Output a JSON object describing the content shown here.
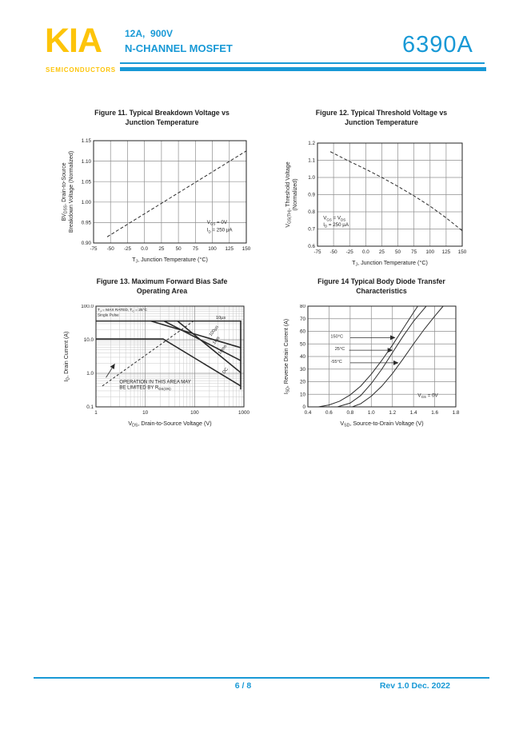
{
  "header": {
    "logo": "KIA",
    "logo_subtitle": "SEMICONDUCTORS",
    "rating_line": "12A,  900V",
    "device_type": "N-CHANNEL MOSFET",
    "part_number": "6390A"
  },
  "footer": {
    "page_indicator": "6 / 8",
    "revision": "Rev 1.0 Dec. 2022"
  },
  "colors": {
    "accent": "#1899D6",
    "logo_yellow": "#FDC40A",
    "ink": "#222222",
    "grid": "#8f8f8f",
    "minor_grid": "#c9c9c9",
    "curve": "#2b2b2b"
  },
  "chart_data": [
    {
      "type": "line",
      "title1": "Figure 11.   Typical Breakdown Voltage vs",
      "title2": "Junction Temperature",
      "ylabel_lines": [
        "BV~DSS~, Drain-to-Source",
        "Breakdown Voltage (Normalized)"
      ],
      "xlabel": "T~J~, Junction Temperature (°C)",
      "x": {
        "scale": "linear",
        "min": -75,
        "max": 150,
        "ticks": [
          -75,
          -50,
          -25,
          0,
          25,
          50,
          75,
          100,
          125,
          150
        ],
        "labels": [
          "-75",
          "-50",
          "-25",
          "0.0",
          "25",
          "50",
          "75",
          "100",
          "125",
          "150"
        ]
      },
      "y": {
        "scale": "linear",
        "min": 0.9,
        "max": 1.15,
        "ticks": [
          0.9,
          0.95,
          1.0,
          1.05,
          1.1,
          1.15
        ],
        "labels": [
          "0.90",
          "0.95",
          "1.00",
          "1.05",
          "1.10",
          "1.15"
        ]
      },
      "series": [
        {
          "name": "BVDSS normalized",
          "dash": "4 2.5",
          "width": 1,
          "points": [
            [
              -55,
              0.915
            ],
            [
              150,
              1.125
            ]
          ]
        }
      ],
      "annotations": [
        {
          "text": "V~GS~ = 0V",
          "x": 92,
          "y": 0.947
        },
        {
          "text": "I~D~ = 250 µA",
          "x": 92,
          "y": 0.928
        }
      ],
      "curve_labels": [],
      "arrows": []
    },
    {
      "type": "line",
      "title1": "Figure 12.   Typical Threshold Voltage vs",
      "title2": "Junction Temperature",
      "ylabel_lines": [
        "V~GS(TH)~, Threshold Voltage",
        "(Normalized)"
      ],
      "xlabel": "T~J~, Junction Temperature (°C)",
      "x": {
        "scale": "linear",
        "min": -75,
        "max": 150,
        "ticks": [
          -75,
          -50,
          -25,
          0,
          25,
          50,
          75,
          100,
          125,
          150
        ],
        "labels": [
          "-75",
          "-50",
          "-25",
          "0.0",
          "25",
          "50",
          "75",
          "100",
          "125",
          "150"
        ]
      },
      "y": {
        "scale": "linear",
        "min": 0.6,
        "max": 1.2,
        "ticks": [
          0.6,
          0.7,
          0.8,
          0.9,
          1.0,
          1.1,
          1.2
        ],
        "labels": [
          "0.6",
          "0.7",
          "0.8",
          "0.9",
          "1.0",
          "1.1",
          "1.2"
        ]
      },
      "series": [
        {
          "name": "VGS(TH) normalized",
          "dash": "4 2.5",
          "width": 1,
          "points": [
            [
              -55,
              1.15
            ],
            [
              -25,
              1.093
            ],
            [
              0,
              1.048
            ],
            [
              25,
              1.0
            ],
            [
              50,
              0.948
            ],
            [
              75,
              0.893
            ],
            [
              100,
              0.833
            ],
            [
              125,
              0.765
            ],
            [
              150,
              0.69
            ]
          ]
        }
      ],
      "annotations": [
        {
          "text": "V~GS~ = V~DS~",
          "x": -66,
          "y": 0.755
        },
        {
          "text": "I~D~ = 250 µA",
          "x": -66,
          "y": 0.716
        }
      ],
      "curve_labels": [],
      "arrows": []
    },
    {
      "type": "line",
      "title1": "Figure 13.   Maximum Forward Bias Safe",
      "title2": "Operating Area",
      "ylabel_lines": [
        "I~D~, Drain Current (A)"
      ],
      "xlabel": "V~DS~, Drain-to-Source Voltage (V)",
      "x": {
        "scale": "log",
        "min": 1,
        "max": 1000,
        "minor": true,
        "ticks": [
          1,
          10,
          100,
          1000
        ],
        "labels": [
          "1",
          "10",
          "100",
          "1000"
        ]
      },
      "y": {
        "scale": "log",
        "min": 0.1,
        "max": 100,
        "minor": true,
        "ticks": [
          0.1,
          1,
          10,
          100
        ],
        "labels": [
          "0.1",
          "1.0",
          "10.0",
          "100.0"
        ]
      },
      "series": [
        {
          "name": "10µs",
          "width": 1.6,
          "points": [
            [
              1,
              36
            ],
            [
              860,
              36
            ],
            [
              860,
              0.33
            ]
          ]
        },
        {
          "name": "100µs",
          "width": 1.6,
          "points": [
            [
              13,
              36
            ],
            [
              860,
              5.8
            ]
          ]
        },
        {
          "name": "1ms",
          "width": 1.6,
          "points": [
            [
              24,
              36
            ],
            [
              860,
              2.4
            ]
          ]
        },
        {
          "name": "10ms",
          "width": 1.6,
          "points": [
            [
              45,
              36
            ],
            [
              860,
              1.05
            ]
          ]
        },
        {
          "name": "DC",
          "width": 1.6,
          "points": [
            [
              1,
              10.5
            ],
            [
              23,
              10.5
            ],
            [
              860,
              0.42
            ]
          ]
        },
        {
          "name": "RDS(on) limit",
          "dash": "3 2.5",
          "width": 1,
          "points": [
            [
              1.35,
              0.42
            ],
            [
              95,
              36
            ]
          ]
        }
      ],
      "annotations": [
        {
          "text": "T~J~ = MAX RATED, T~C~ = 25°C",
          "x": 1.08,
          "y": 72,
          "size": 4.8
        },
        {
          "text": "Single Pulse",
          "x": 1.08,
          "y": 50,
          "size": 4.8
        },
        {
          "text": "OPERATION IN THIS AREA MAY",
          "x": 3.0,
          "y": 0.5,
          "size": 6
        },
        {
          "text": "BE LIMITED BY R~DS(ON)~",
          "x": 3.0,
          "y": 0.345,
          "size": 6
        }
      ],
      "curve_labels": [
        {
          "text": "10µs",
          "x": 270,
          "y": 42,
          "angle": 0
        },
        {
          "text": "100µs",
          "x": 215,
          "y": 12.5,
          "angle": -52
        },
        {
          "text": "1ms",
          "x": 255,
          "y": 7.2,
          "angle": -52
        },
        {
          "text": "10ms",
          "x": 330,
          "y": 3.6,
          "angle": -52
        },
        {
          "text": "DC",
          "x": 400,
          "y": 0.95,
          "angle": -52
        }
      ],
      "arrows": [
        {
          "from": [
            1.6,
            0.75
          ],
          "to": [
            2.4,
            1.9
          ]
        }
      ]
    },
    {
      "type": "line",
      "title1": "Figure 14   Typical Body Diode Transfer",
      "title2": "Characteristics",
      "ylabel_lines": [
        "I~SD~, Reverse Drain Current (A)"
      ],
      "xlabel": "V~SD~, Source-to-Drain Voltage (V)",
      "x": {
        "scale": "linear",
        "min": 0.4,
        "max": 1.8,
        "ticks": [
          0.4,
          0.6,
          0.8,
          1.0,
          1.2,
          1.4,
          1.6,
          1.8
        ],
        "labels": [
          "0.4",
          "0.6",
          "0.8",
          "1.0",
          "1.2",
          "1.4",
          "1.6",
          "1.8"
        ]
      },
      "y": {
        "scale": "linear",
        "min": 0,
        "max": 80,
        "ticks": [
          0,
          10,
          20,
          30,
          40,
          50,
          60,
          70,
          80
        ],
        "labels": [
          "0",
          "10",
          "20",
          "30",
          "40",
          "50",
          "60",
          "70",
          "80"
        ]
      },
      "series": [
        {
          "name": "150°C",
          "width": 1,
          "points": [
            [
              0.5,
              0
            ],
            [
              0.6,
              1.5
            ],
            [
              0.7,
              4.5
            ],
            [
              0.8,
              9.5
            ],
            [
              0.9,
              16.5
            ],
            [
              1.0,
              26
            ],
            [
              1.1,
              37
            ],
            [
              1.2,
              49
            ],
            [
              1.3,
              62
            ],
            [
              1.4,
              75
            ],
            [
              1.44,
              80
            ]
          ]
        },
        {
          "name": "25°C",
          "width": 1,
          "points": [
            [
              0.68,
              0
            ],
            [
              0.8,
              3
            ],
            [
              0.9,
              9
            ],
            [
              1.0,
              18.5
            ],
            [
              1.1,
              30
            ],
            [
              1.2,
              43
            ],
            [
              1.3,
              56
            ],
            [
              1.4,
              68
            ],
            [
              1.5,
              78
            ],
            [
              1.52,
              80
            ]
          ]
        },
        {
          "name": "-55°C",
          "width": 1,
          "points": [
            [
              0.82,
              0
            ],
            [
              0.9,
              2.5
            ],
            [
              1.0,
              8.5
            ],
            [
              1.1,
              16.5
            ],
            [
              1.2,
              26.5
            ],
            [
              1.3,
              38
            ],
            [
              1.4,
              50
            ],
            [
              1.5,
              61.5
            ],
            [
              1.6,
              72
            ],
            [
              1.68,
              80
            ]
          ]
        }
      ],
      "annotations": [
        {
          "text": "V~GS~ = 0V",
          "x": 1.44,
          "y": 8
        }
      ],
      "curve_labels": [
        {
          "text": "150°C",
          "x": 0.615,
          "y": 55,
          "angle": 0
        },
        {
          "text": "25°C",
          "x": 0.655,
          "y": 45,
          "angle": 0
        },
        {
          "text": "-55°C",
          "x": 0.615,
          "y": 35,
          "angle": 0
        }
      ],
      "arrows": [
        {
          "from": [
            0.8,
            55
          ],
          "to": [
            1.225,
            55
          ]
        },
        {
          "from": [
            0.79,
            45
          ],
          "to": [
            1.2,
            45
          ]
        },
        {
          "from": [
            0.8,
            35
          ],
          "to": [
            1.255,
            35
          ]
        }
      ]
    }
  ]
}
